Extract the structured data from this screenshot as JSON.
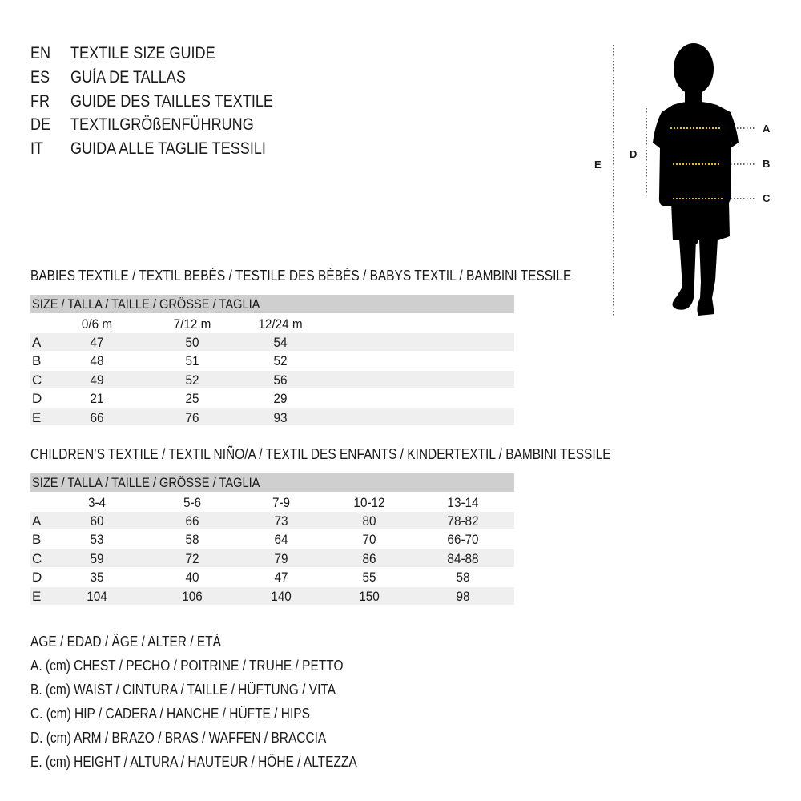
{
  "header": {
    "lines": [
      {
        "code": "EN",
        "text": "TEXTILE SIZE GUIDE"
      },
      {
        "code": "ES",
        "text": "GUÍA DE TALLAS"
      },
      {
        "code": "FR",
        "text": "GUIDE DES TAILLES TEXTILE"
      },
      {
        "code": "DE",
        "text": "TEXTILGRÖßENFÜHRUNG"
      },
      {
        "code": "IT",
        "text": "GUIDA ALLE TAGLIE TESSILI"
      }
    ]
  },
  "figure": {
    "labels": {
      "a": "A",
      "b": "B",
      "c": "C",
      "d": "D",
      "e": "E"
    },
    "marker_color": "#e8c21a"
  },
  "babies": {
    "title": "BABIES TEXTILE / TEXTIL BEBÉS / TESTILE DES BÉBÉS / BABYS TEXTIL / BAMBINI TESSILE",
    "size_header": "SIZE / TALLA / TAILLE / GRÖSSE / TAGLIA",
    "columns": [
      "0/6 m",
      "7/12 m",
      "12/24 m"
    ],
    "rows": [
      {
        "label": "A",
        "values": [
          "47",
          "50",
          "54"
        ]
      },
      {
        "label": "B",
        "values": [
          "48",
          "51",
          "52"
        ]
      },
      {
        "label": "C",
        "values": [
          "49",
          "52",
          "56"
        ]
      },
      {
        "label": "D",
        "values": [
          "21",
          "25",
          "29"
        ]
      },
      {
        "label": "E",
        "values": [
          "66",
          "76",
          "93"
        ]
      }
    ]
  },
  "children": {
    "title": "CHILDREN’S TEXTILE / TEXTIL NIÑO/A / TEXTIL DES ENFANTS / KINDERTEXTIL / BAMBINI TESSILE",
    "size_header": "SIZE / TALLA / TAILLE / GRÖSSE / TAGLIA",
    "columns": [
      "3-4",
      "5-6",
      "7-9",
      "10-12",
      "13-14"
    ],
    "rows": [
      {
        "label": "A",
        "values": [
          "60",
          "66",
          "73",
          "80",
          "78-82"
        ]
      },
      {
        "label": "B",
        "values": [
          "53",
          "58",
          "64",
          "70",
          "66-70"
        ]
      },
      {
        "label": "C",
        "values": [
          "59",
          "72",
          "79",
          "86",
          "84-88"
        ]
      },
      {
        "label": "D",
        "values": [
          "35",
          "40",
          "47",
          "55",
          "58"
        ]
      },
      {
        "label": "E",
        "values": [
          "104",
          "106",
          "140",
          "150",
          "98"
        ]
      }
    ]
  },
  "legend": [
    "AGE / EDAD / ÂGE / ALTER / ETÀ",
    "A. (cm) CHEST / PECHO / POITRINE / TRUHE / PETTO",
    "B. (cm) WAIST / CINTURA / TAILLE / HÜFTUNG / VITA",
    "C. (cm) HIP / CADERA / HANCHE / HÜFTE / HIPS",
    "D. (cm) ARM / BRAZO / BRAS / WAFFEN / BRACCIA",
    "E. (cm) HEIGHT / ALTURA / HAUTEUR / HÖHE / ALTEZZA"
  ]
}
